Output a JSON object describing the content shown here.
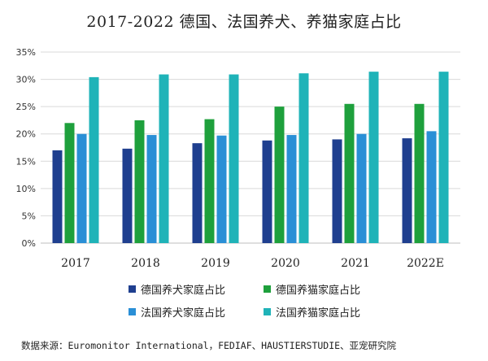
{
  "title": "2017-2022 德国、法国养犬、养猫家庭占比",
  "source": "数据来源：Euromonitor International，FEDIAF、HAUSTIERSTUDIE、亚宠研究院",
  "chart_data": {
    "type": "bar",
    "title": "2017-2022 德国、法国养犬、养猫家庭占比",
    "categories": [
      "2017",
      "2018",
      "2019",
      "2020",
      "2021",
      "2022E"
    ],
    "y_ticks": [
      "0%",
      "5%",
      "10%",
      "15%",
      "20%",
      "25%",
      "30%",
      "35%"
    ],
    "ylim": [
      0,
      35
    ],
    "grid": true,
    "legend_position": "bottom",
    "series": [
      {
        "name": "德国养犬家庭占比",
        "color": "#1f3f8f",
        "values": [
          17.0,
          17.3,
          18.3,
          18.8,
          19.0,
          19.2
        ]
      },
      {
        "name": "德国养猫家庭占比",
        "color": "#1ea03c",
        "values": [
          22.0,
          22.5,
          22.7,
          25.0,
          25.5,
          25.5
        ]
      },
      {
        "name": "法国养犬家庭占比",
        "color": "#2a8fd6",
        "values": [
          20.0,
          19.8,
          19.7,
          19.8,
          20.0,
          20.5
        ]
      },
      {
        "name": "法国养猫家庭占比",
        "color": "#1fb3b8",
        "values": [
          30.4,
          30.9,
          30.9,
          31.1,
          31.4,
          31.4
        ]
      }
    ]
  }
}
